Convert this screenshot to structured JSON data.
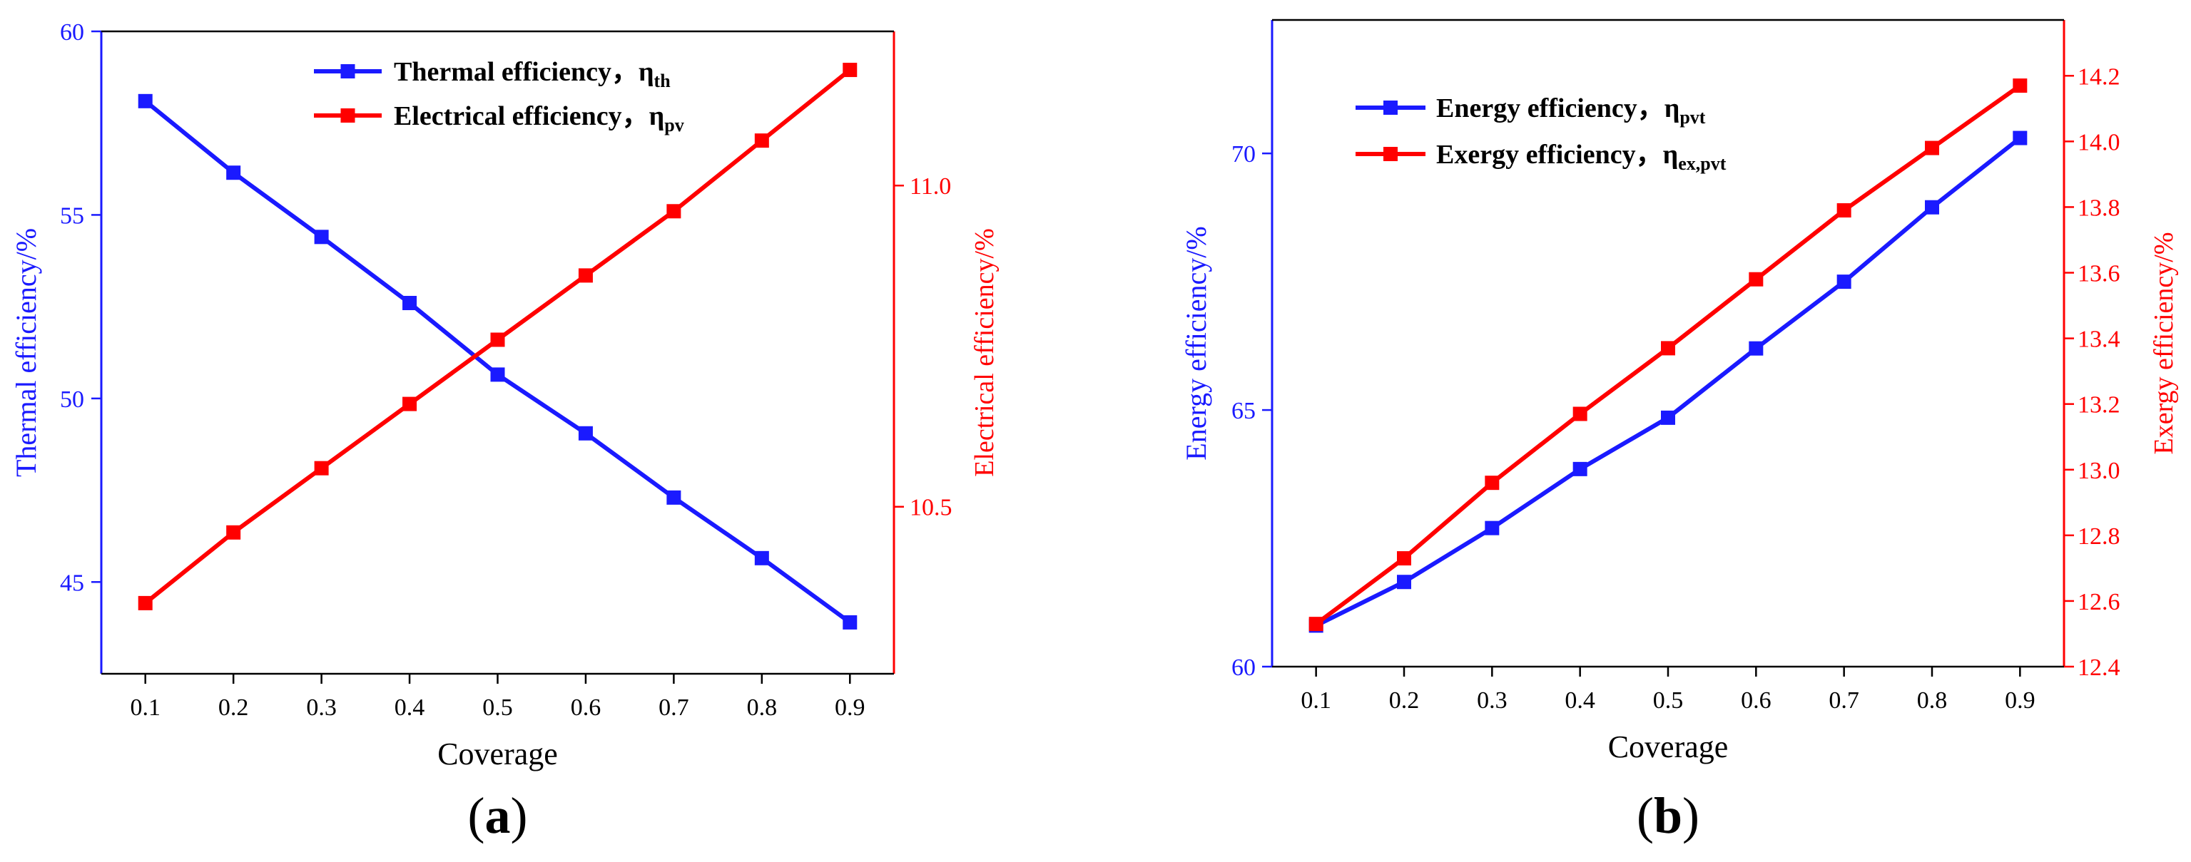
{
  "chart_data": [
    {
      "type": "line",
      "panel_label": "(a)",
      "panel_letter": "a",
      "xlabel": "Coverage",
      "x": [
        0.1,
        0.2,
        0.3,
        0.4,
        0.5,
        0.6,
        0.7,
        0.8,
        0.9
      ],
      "xticks": [
        "0.1",
        "0.2",
        "0.3",
        "0.4",
        "0.5",
        "0.6",
        "0.7",
        "0.8",
        "0.9"
      ],
      "xlim": [
        0.05,
        0.95
      ],
      "left_axis": {
        "label": "Thermal efficiency/%",
        "color": "#1a1aff",
        "ylim": [
          42.5,
          60
        ],
        "ticks": [
          45,
          50,
          55,
          60
        ],
        "tick_labels": [
          "45",
          "50",
          "55",
          "60"
        ]
      },
      "right_axis": {
        "label": "Electrical efficiency/%",
        "color": "#ff0000",
        "ylim": [
          10.24,
          11.24
        ],
        "ticks": [
          10.5,
          11.0
        ],
        "tick_labels": [
          "10.5",
          "11.0"
        ]
      },
      "series": [
        {
          "name": "Thermal efficiency，",
          "symbol_main": "η",
          "symbol_sub": "th",
          "axis": "left",
          "color": "#1a1aff",
          "values": [
            58.1,
            56.15,
            54.4,
            52.6,
            50.65,
            49.05,
            47.3,
            45.65,
            43.9
          ]
        },
        {
          "name": "Electrical efficiency，",
          "symbol_main": "η",
          "symbol_sub": "pv",
          "axis": "right",
          "color": "#ff0000",
          "values": [
            10.35,
            10.46,
            10.56,
            10.66,
            10.76,
            10.86,
            10.96,
            11.07,
            11.18
          ]
        }
      ]
    },
    {
      "type": "line",
      "panel_label": "(b)",
      "panel_letter": "b",
      "xlabel": "Coverage",
      "x": [
        0.1,
        0.2,
        0.3,
        0.4,
        0.5,
        0.6,
        0.7,
        0.8,
        0.9
      ],
      "xticks": [
        "0.1",
        "0.2",
        "0.3",
        "0.4",
        "0.5",
        "0.6",
        "0.7",
        "0.8",
        "0.9"
      ],
      "xlim": [
        0.05,
        0.95
      ],
      "left_axis": {
        "label": "Energy efficiency/%",
        "color": "#1a1aff",
        "ylim": [
          60,
          72.6
        ],
        "ticks": [
          60,
          65,
          70
        ],
        "tick_labels": [
          "60",
          "65",
          "70"
        ]
      },
      "right_axis": {
        "label": "Exergy efficiency/%",
        "color": "#ff0000",
        "ylim": [
          12.4,
          14.37
        ],
        "ticks": [
          12.4,
          12.6,
          12.8,
          13.0,
          13.2,
          13.4,
          13.6,
          13.8,
          14.0,
          14.2
        ],
        "tick_labels": [
          "12.4",
          "12.6",
          "12.8",
          "13.0",
          "13.2",
          "13.4",
          "13.6",
          "13.8",
          "14.0",
          "14.2"
        ]
      },
      "series": [
        {
          "name": "Energy efficiency，",
          "symbol_main": "η",
          "symbol_sub": "pvt",
          "axis": "left",
          "color": "#1a1aff",
          "values": [
            60.8,
            61.65,
            62.7,
            63.85,
            64.85,
            66.2,
            67.5,
            68.95,
            70.3
          ]
        },
        {
          "name": "Exergy efficiency，",
          "symbol_main": "η",
          "symbol_sub": "ex,pvt",
          "axis": "right",
          "color": "#ff0000",
          "values": [
            12.53,
            12.73,
            12.96,
            13.17,
            13.37,
            13.58,
            13.79,
            13.98,
            14.17
          ]
        }
      ]
    }
  ]
}
